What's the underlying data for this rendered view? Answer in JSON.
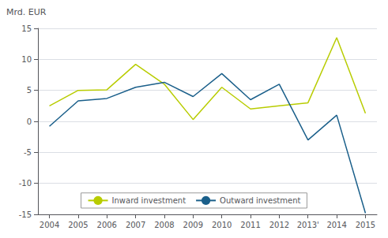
{
  "chart_data": {
    "type": "line",
    "ylabel": "Mrd. EUR",
    "x": [
      2004,
      2005,
      2006,
      2007,
      2008,
      2009,
      2010,
      2011,
      2012,
      2013,
      2014,
      2015
    ],
    "series": [
      {
        "name": "Inward investment",
        "color": "#b8cc00",
        "values": [
          2.5,
          5.0,
          5.1,
          9.2,
          6.0,
          0.3,
          5.5,
          2.0,
          2.5,
          3.0,
          13.5,
          1.3
        ]
      },
      {
        "name": "Outward investment",
        "color": "#1a5f8a",
        "values": [
          -0.8,
          3.3,
          3.7,
          5.5,
          6.3,
          4.0,
          7.7,
          3.5,
          6.0,
          -3.0,
          1.0,
          -14.8
        ]
      }
    ],
    "xlim": [
      2003.6,
      2015.4
    ],
    "xticks": [
      2004,
      2005,
      2006,
      2007,
      2008,
      2009,
      2010,
      2011,
      2012,
      {
        "value": 2013,
        "label": "2013'"
      },
      2014,
      2015
    ],
    "ylim": [
      -15,
      15
    ],
    "yticks": [
      -15,
      -10,
      -5,
      0,
      5,
      10,
      15
    ],
    "grid": true,
    "legend": "bottom"
  }
}
